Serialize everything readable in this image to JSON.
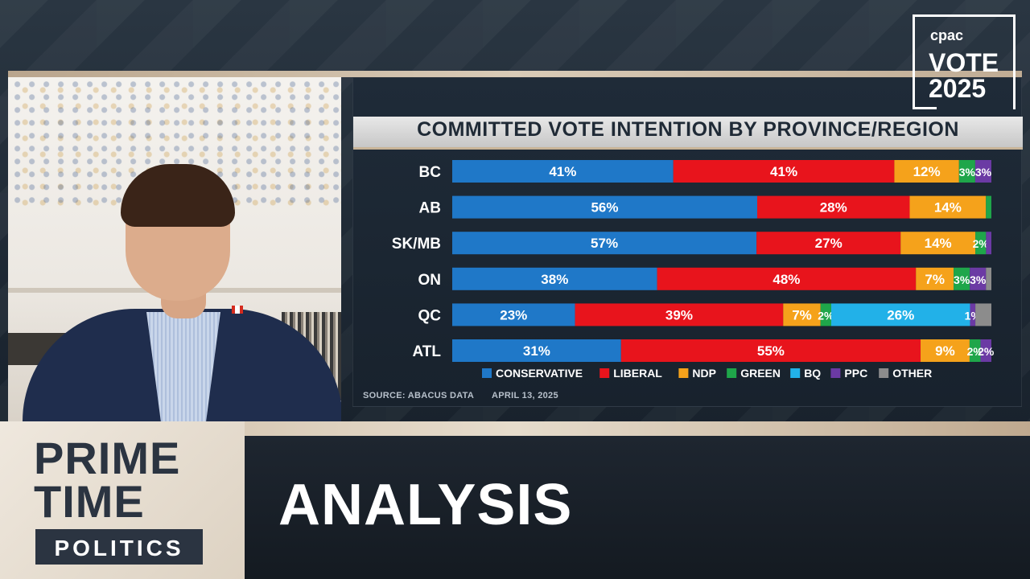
{
  "chart_data": {
    "type": "bar",
    "orientation": "horizontal",
    "stacked": true,
    "title": "COMMITTED VOTE INTENTION BY PROVINCE/REGION",
    "categories": [
      "BC",
      "AB",
      "SK/MB",
      "ON",
      "QC",
      "ATL"
    ],
    "series": [
      {
        "name": "CONSERVATIVE",
        "color": "#1f78c8",
        "values": [
          41,
          56,
          57,
          38,
          23,
          31
        ]
      },
      {
        "name": "LIBERAL",
        "color": "#e8141c",
        "values": [
          41,
          28,
          27,
          48,
          39,
          55
        ]
      },
      {
        "name": "NDP",
        "color": "#f5a21b",
        "values": [
          12,
          14,
          14,
          7,
          7,
          9
        ]
      },
      {
        "name": "GREEN",
        "color": "#1fa64a",
        "values": [
          3,
          1,
          2,
          3,
          2,
          2
        ]
      },
      {
        "name": "BQ",
        "color": "#22b1e8",
        "values": [
          0,
          0,
          0,
          0,
          26,
          0
        ]
      },
      {
        "name": "PPC",
        "color": "#6b3aa4",
        "values": [
          3,
          0,
          1,
          3,
          1,
          2
        ]
      },
      {
        "name": "OTHER",
        "color": "#8c8c8c",
        "values": [
          0,
          0,
          0,
          1,
          3,
          0
        ]
      }
    ],
    "data_labels": [
      [
        "41%",
        "41%",
        "12%",
        "3%",
        "",
        "3%",
        ""
      ],
      [
        "56%",
        "28%",
        "14%",
        "",
        "",
        "",
        ""
      ],
      [
        "57%",
        "27%",
        "14%",
        "2%",
        "",
        "",
        ""
      ],
      [
        "38%",
        "48%",
        "7%",
        "3%",
        "",
        "3%",
        ""
      ],
      [
        "23%",
        "39%",
        "7%",
        "2%",
        "26%",
        "1%",
        ""
      ],
      [
        "31%",
        "55%",
        "9%",
        "2%",
        "",
        "2%",
        ""
      ]
    ],
    "xlim": [
      0,
      100
    ],
    "legend_position": "bottom",
    "grid": false
  },
  "source": {
    "label": "SOURCE: ABACUS DATA",
    "date": "APRIL 13, 2025"
  },
  "logo": {
    "network": "cpac",
    "line1": "VOTE",
    "line2": "2025"
  },
  "show": {
    "line1": "PRIME",
    "line2": "TIME",
    "line3": "POLITICS"
  },
  "segment": {
    "title": "ANALYSIS"
  }
}
